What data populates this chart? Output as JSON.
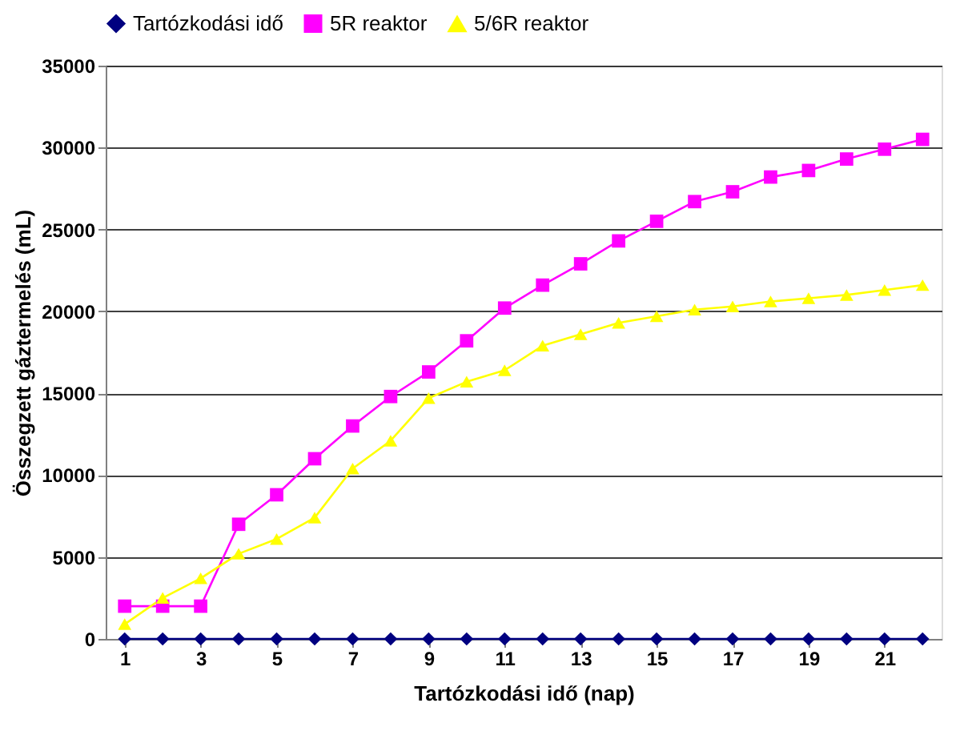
{
  "chart_data": {
    "type": "line",
    "xlabel": "Tartózkodási idő (nap)",
    "ylabel": "Összegzett gáztermelés (mL)",
    "x": [
      1,
      2,
      3,
      4,
      5,
      6,
      7,
      8,
      9,
      10,
      11,
      12,
      13,
      14,
      15,
      16,
      17,
      18,
      19,
      20,
      21,
      22
    ],
    "xlim": [
      0.5,
      22.5
    ],
    "xticks": [
      1,
      3,
      5,
      7,
      9,
      11,
      13,
      15,
      17,
      19,
      21
    ],
    "series": [
      {
        "name": "Tartózkodási idő",
        "color": "#000080",
        "marker": "diamond",
        "values": [
          0,
          0,
          0,
          0,
          0,
          0,
          0,
          0,
          0,
          0,
          0,
          0,
          0,
          0,
          0,
          0,
          0,
          0,
          0,
          0,
          0,
          0
        ]
      },
      {
        "name": "5R reaktor",
        "color": "#ff00ff",
        "marker": "square",
        "values": [
          2000,
          2000,
          2000,
          7000,
          8800,
          11000,
          13000,
          14800,
          16300,
          18200,
          20200,
          21600,
          22900,
          24300,
          25500,
          26700,
          27300,
          28200,
          28600,
          29300,
          29900,
          30500
        ]
      },
      {
        "name": "5/6R reaktor",
        "color": "#ffff00",
        "marker": "triangle",
        "values": [
          900,
          2500,
          3700,
          5200,
          6100,
          7400,
          10400,
          12100,
          14700,
          15700,
          16400,
          17900,
          18600,
          19300,
          19700,
          20100,
          20300,
          20600,
          20800,
          21000,
          21300,
          21600
        ]
      }
    ],
    "ylim": [
      0,
      35000
    ],
    "yticks": [
      0,
      5000,
      10000,
      15000,
      20000,
      25000,
      30000,
      35000
    ],
    "grid": "y",
    "legend": "top"
  }
}
